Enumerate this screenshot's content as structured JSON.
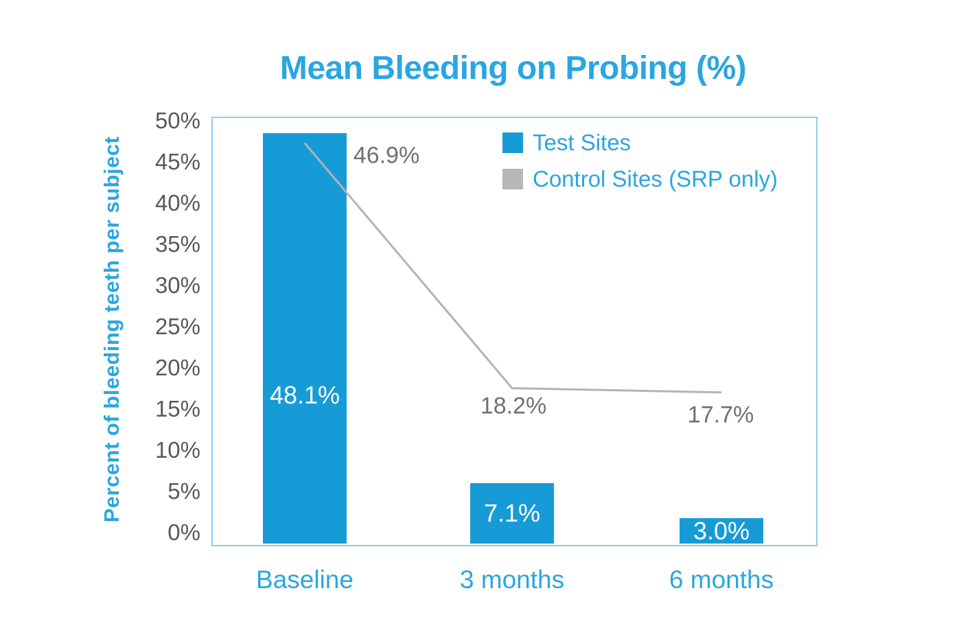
{
  "title": "Mean Bleeding on Probing (%)",
  "colors": {
    "bar_blue": "#179BD7",
    "text_blue": "#2AA6E1",
    "plot_border_blue": "#90CBEC",
    "line_gray": "#B3B3B3",
    "legend_gray": "#B7B7B8",
    "tick_gray": "#58595B",
    "point_label_gray": "#707174",
    "bar_label_white": "#FFFFFF"
  },
  "chart_data": {
    "type": "bar",
    "title": "Mean Bleeding on Probing (%)",
    "xlabel": "",
    "ylabel": "Percent of bleeding teeth per subject",
    "categories": [
      "Baseline",
      "3 months",
      "6 months"
    ],
    "series": [
      {
        "name": "Test Sites",
        "type": "bar",
        "color": "#179BD7",
        "values": [
          48.1,
          7.1,
          3.0
        ],
        "labels": [
          "48.1%",
          "7.1%",
          "3.0%"
        ]
      },
      {
        "name": "Control Sites (SRP only)",
        "type": "line",
        "color": "#B3B3B3",
        "values": [
          46.9,
          18.2,
          17.7
        ],
        "labels": [
          "46.9%",
          "18.2%",
          "17.7%"
        ]
      }
    ],
    "ylim": [
      0,
      50
    ],
    "ytick_step": 5,
    "yticks": [
      "0%",
      "5%",
      "10%",
      "15%",
      "20%",
      "25%",
      "30%",
      "35%",
      "40%",
      "45%",
      "50%"
    ],
    "grid": false,
    "legend_position": "inside-top-right",
    "legend": [
      {
        "label": "Test Sites",
        "color": "#179BD7"
      },
      {
        "label": "Control Sites (SRP only)",
        "color": "#B7B7B8"
      }
    ]
  }
}
